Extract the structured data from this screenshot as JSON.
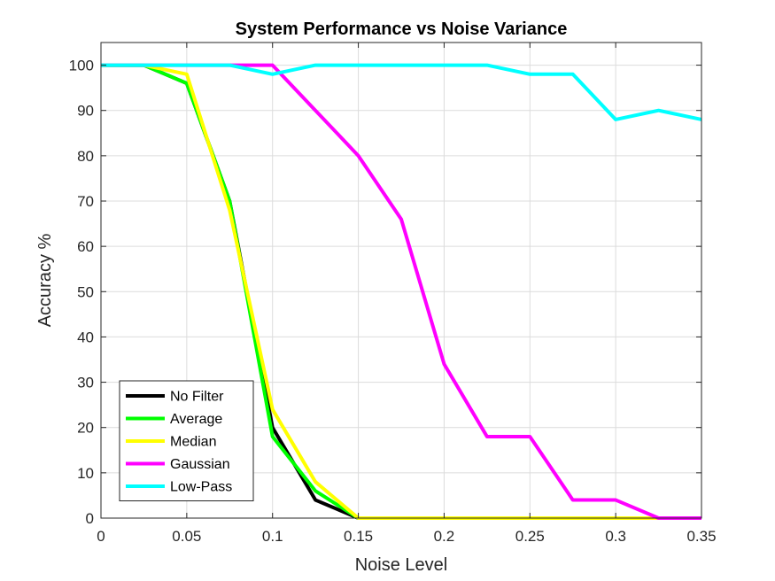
{
  "chart_data": {
    "type": "line",
    "title": "System Performance vs Noise Variance",
    "xlabel": "Noise Level",
    "ylabel": "Accuracy %",
    "xlim": [
      0,
      0.35
    ],
    "ylim": [
      0,
      105
    ],
    "xticks": [
      0,
      0.05,
      0.1,
      0.15,
      0.2,
      0.25,
      0.3,
      0.35
    ],
    "xtick_labels": [
      "0",
      "0.05",
      "0.1",
      "0.15",
      "0.2",
      "0.25",
      "0.3",
      "0.35"
    ],
    "yticks": [
      0,
      10,
      20,
      30,
      40,
      50,
      60,
      70,
      80,
      90,
      100
    ],
    "ytick_labels": [
      "0",
      "10",
      "20",
      "30",
      "40",
      "50",
      "60",
      "70",
      "80",
      "90",
      "100"
    ],
    "grid": true,
    "legend_position": "bottom-left",
    "x": [
      0,
      0.025,
      0.05,
      0.075,
      0.1,
      0.125,
      0.15,
      0.175,
      0.2,
      0.225,
      0.25,
      0.275,
      0.3,
      0.325,
      0.35
    ],
    "series": [
      {
        "name": "No Filter",
        "color": "#000000",
        "values": [
          100,
          100,
          96,
          70,
          20,
          4,
          0,
          0,
          0,
          0,
          0,
          0,
          0,
          0,
          0
        ]
      },
      {
        "name": "Average",
        "color": "#00ff00",
        "values": [
          100,
          100,
          96,
          70,
          18,
          6,
          0,
          0,
          0,
          0,
          0,
          0,
          0,
          0,
          0
        ]
      },
      {
        "name": "Median",
        "color": "#ffff00",
        "values": [
          100,
          100,
          98,
          68,
          24,
          8,
          0,
          0,
          0,
          0,
          0,
          0,
          0,
          0,
          0
        ]
      },
      {
        "name": "Gaussian",
        "color": "#ff00ff",
        "values": [
          100,
          100,
          100,
          100,
          100,
          90,
          80,
          66,
          34,
          18,
          18,
          4,
          4,
          0,
          0
        ]
      },
      {
        "name": "Low-Pass",
        "color": "#00ffff",
        "values": [
          100,
          100,
          100,
          100,
          98,
          100,
          100,
          100,
          100,
          100,
          98,
          98,
          88,
          90,
          88
        ]
      }
    ]
  }
}
